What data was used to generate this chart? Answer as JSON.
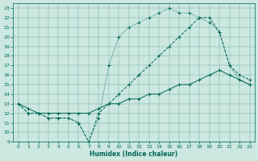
{
  "xlabel": "Humidex (Indice chaleur)",
  "bg_color": "#cce8e0",
  "line_color": "#006655",
  "xlim": [
    -0.5,
    23.5
  ],
  "ylim": [
    9,
    23.5
  ],
  "xticks": [
    0,
    1,
    2,
    3,
    4,
    5,
    6,
    7,
    8,
    9,
    10,
    11,
    12,
    13,
    14,
    15,
    16,
    17,
    18,
    19,
    20,
    21,
    22,
    23
  ],
  "yticks": [
    9,
    10,
    11,
    12,
    13,
    14,
    15,
    16,
    17,
    18,
    19,
    20,
    21,
    22,
    23
  ],
  "line1_x": [
    0,
    1,
    2,
    3,
    4,
    5,
    6,
    7,
    8,
    9,
    10,
    11,
    12,
    13,
    14,
    15,
    16,
    17,
    18,
    19,
    20,
    21,
    22,
    23
  ],
  "line1_y": [
    13,
    12,
    12,
    11.5,
    11.5,
    11.5,
    11,
    9,
    11.5,
    17,
    20,
    21,
    21.5,
    22,
    22.5,
    23,
    22.5,
    22.5,
    22,
    21.5,
    20.5,
    17,
    15.5,
    15
  ],
  "line2_x": [
    0,
    1,
    2,
    3,
    4,
    5,
    6,
    7,
    8,
    9,
    10,
    11,
    12,
    13,
    14,
    15,
    16,
    17,
    18,
    19,
    20,
    21,
    22,
    23
  ],
  "line2_y": [
    13,
    12,
    12,
    11.5,
    11.5,
    11.5,
    11,
    9,
    12,
    13,
    14,
    15,
    16,
    17,
    18,
    19,
    20,
    21,
    22,
    22,
    20.5,
    17,
    16,
    15.5
  ],
  "line3_x": [
    0,
    1,
    2,
    3,
    4,
    5,
    6,
    7,
    8,
    9,
    10,
    11,
    12,
    13,
    14,
    15,
    16,
    17,
    18,
    19,
    20,
    21,
    22,
    23
  ],
  "line3_y": [
    13,
    12.5,
    12,
    12,
    12,
    12,
    12,
    12,
    12.5,
    13,
    13,
    13.5,
    13.5,
    14,
    14,
    14.5,
    15,
    15,
    15.5,
    16,
    16.5,
    16,
    15.5,
    15
  ]
}
